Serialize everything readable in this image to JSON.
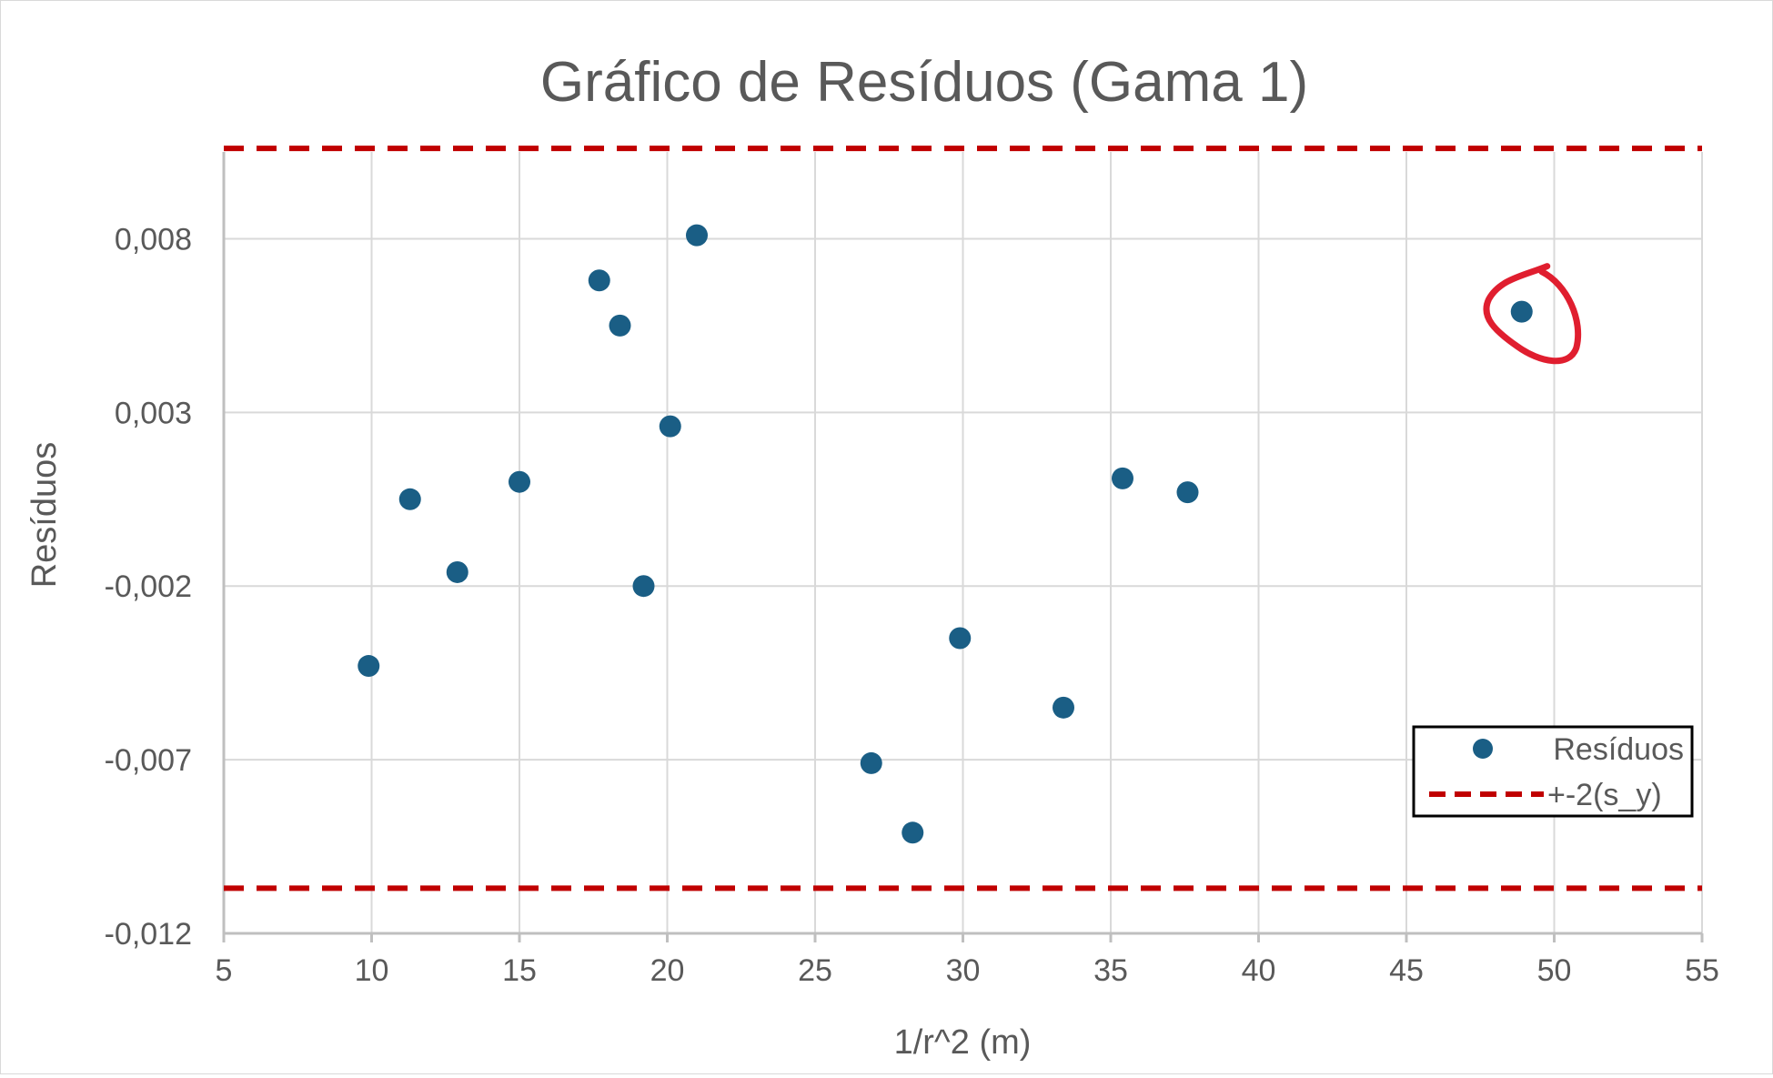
{
  "chart_data": {
    "type": "scatter",
    "title": "Gráfico de Resíduos (Gama 1)",
    "xlabel": "1/r^2 (m)",
    "ylabel": "Resíduos",
    "xlim": [
      5,
      55
    ],
    "ylim": [
      -0.012,
      0.0105
    ],
    "x_ticks": [
      5,
      10,
      15,
      20,
      25,
      30,
      35,
      40,
      45,
      50,
      55
    ],
    "x_tick_labels": [
      "5",
      "10",
      "15",
      "20",
      "25",
      "30",
      "35",
      "40",
      "45",
      "50",
      "55"
    ],
    "y_ticks": [
      -0.012,
      -0.007,
      -0.002,
      0.003,
      0.008
    ],
    "y_tick_labels": [
      "-0,012",
      "-0,007",
      "-0,002",
      "0,003",
      "0,008"
    ],
    "grid": true,
    "legend_position": "bottom-right",
    "series": [
      {
        "name": "Resíduos",
        "type": "scatter",
        "color": "#1a5e85",
        "x": [
          9.9,
          11.3,
          12.9,
          15.0,
          17.7,
          18.4,
          19.2,
          20.1,
          21.0,
          26.9,
          28.3,
          29.9,
          33.4,
          35.4,
          37.6,
          48.9
        ],
        "y": [
          -0.0043,
          0.0005,
          -0.0016,
          0.001,
          0.0068,
          0.0055,
          -0.002,
          0.0026,
          0.0081,
          -0.0071,
          -0.0091,
          -0.0035,
          -0.0055,
          0.0011,
          0.0007,
          0.0059
        ]
      },
      {
        "name": "+-2(s_y)",
        "type": "line",
        "style": "dashed",
        "color": "#c00000",
        "values": [
          0.0106,
          -0.0107
        ]
      }
    ],
    "annotation": {
      "type": "hand-drawn-circle",
      "color": "#e01e2f",
      "target_point": [
        48.9,
        0.0059
      ]
    }
  }
}
